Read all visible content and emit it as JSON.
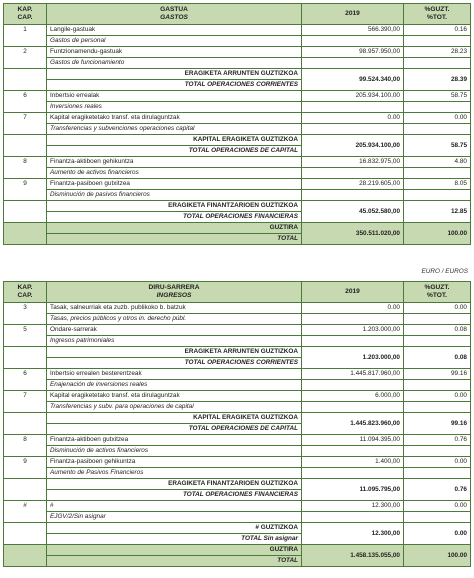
{
  "t1": {
    "header": {
      "cap": "KAP.",
      "cap2": "CAP.",
      "title": "GASTUA",
      "title2": "GASTOS",
      "year": "2019",
      "pct": "%GUZT.",
      "pct2": "%TOT."
    },
    "r1": {
      "cap": "1",
      "eu": "Langile-gastuak",
      "es": "Gastos de personal",
      "amt": "566.390,00",
      "pct": "0.16"
    },
    "r2": {
      "cap": "2",
      "eu": "Funtzionamendu-gastuak",
      "es": "Gastos de funcionamiento",
      "amt": "98.957.950,00",
      "pct": "28.23"
    },
    "s1": {
      "eu": "ERAGIKETA ARRUNTEN GUZTIZKOA",
      "es": "TOTAL OPERACIONES CORRIENTES",
      "amt": "99.524.340,00",
      "pct": "28.39"
    },
    "r6": {
      "cap": "6",
      "eu": "Inbertsio errealak",
      "es": "Inversiones reales",
      "amt": "205.934.100,00",
      "pct": "58.75"
    },
    "r7": {
      "cap": "7",
      "eu": "Kapital eragiketetako transf. eta dirulaguntzak",
      "es": "Transferencias y subvenciones operaciones capital",
      "amt": "0.00",
      "pct": "0.00"
    },
    "s2": {
      "eu": "KAPITAL ERAGIKETA GUZTIZKOA",
      "es": "TOTAL OPERACIONES DE CAPITAL",
      "amt": "205.934.100,00",
      "pct": "58.75"
    },
    "r8": {
      "cap": "8",
      "eu": "Finantza-aktiboen gehikuntza",
      "es": "Aumento de activos financieros",
      "amt": "16.832.975,00",
      "pct": "4.80"
    },
    "r9": {
      "cap": "9",
      "eu": "Finantza-pasiboen gutxitzea",
      "es": "Disminución de pasivos financieros",
      "amt": "28.219.605,00",
      "pct": "8.05"
    },
    "s3": {
      "eu": "ERAGIKETA FINANTZARIOEN GUZTIZKOA",
      "es": "TOTAL OPERACIONES FINANCIERAS",
      "amt": "45.052.580,00",
      "pct": "12.85"
    },
    "tot": {
      "eu": "GUZTIRA",
      "es": "TOTAL",
      "amt": "350.511.020,00",
      "pct": "100.00"
    }
  },
  "unit": "EURO / EUROS",
  "t2": {
    "header": {
      "cap": "KAP.",
      "cap2": "CAP.",
      "title": "DIRU-SARRERA",
      "title2": "INGRESOS",
      "year": "2019",
      "pct": "%GUZT.",
      "pct2": "%TOT."
    },
    "r3": {
      "cap": "3",
      "eu": "Tasak, salneurriak eta zuzb. publikoko b. batzuk",
      "es": "Tasas, precios públicos y otros in. derecho públ.",
      "amt": "0.00",
      "pct": "0.00"
    },
    "r5": {
      "cap": "5",
      "eu": "Ondare-sarrerak",
      "es": "Ingresos patrimoniales",
      "amt": "1.203.000,00",
      "pct": "0.08"
    },
    "s1": {
      "eu": "ERAGIKETA ARRUNTEN GUZTIZKOA",
      "es": "TOTAL OPERACIONES CORRIENTES",
      "amt": "1.203.000,00",
      "pct": "0.08"
    },
    "r6": {
      "cap": "6",
      "eu": "Inbertsio errealen besterentzeak",
      "es": "Enajenación de inversiones reales",
      "amt": "1.445.817.960,00",
      "pct": "99.16"
    },
    "r7": {
      "cap": "7",
      "eu": "Kapital eragiketetako transf. eta dirulaguntzak",
      "es": "Transferencias y subv. para operaciones de capital",
      "amt": "6.000,00",
      "pct": "0.00"
    },
    "s2": {
      "eu": "KAPITAL ERAGIKETA GUZTIZKOA",
      "es": "TOTAL OPERACIONES DE CAPITAL",
      "amt": "1.445.823.960,00",
      "pct": "99.16"
    },
    "r8": {
      "cap": "8",
      "eu": "Finantza-aktiboen gutxitzea",
      "es": "Disminución de activos financieros",
      "amt": "11.094.395,00",
      "pct": "0.76"
    },
    "r9": {
      "cap": "9",
      "eu": "Finantza-pasiboen gehikuntza",
      "es": "Aumento de Pasivos Financieros",
      "amt": "1.400,00",
      "pct": "0.00"
    },
    "s3": {
      "eu": "ERAGIKETA FINANTZARIOEN GUZTIZKOA",
      "es": "TOTAL OPERACIONES FINANCIERAS",
      "amt": "11.095.795,00",
      "pct": "0.76"
    },
    "rh": {
      "cap": "#",
      "eu": "#",
      "es": "EJGV/2/Sin asignar",
      "amt": "12.300,00",
      "pct": "0.00"
    },
    "s4": {
      "eu": "# GUZTIZKOA",
      "es": "TOTAL Sin asignar",
      "amt": "12.300,00",
      "pct": "0.00"
    },
    "tot": {
      "eu": "GUZTIRA",
      "es": "TOTAL",
      "amt": "1.458.135.055,00",
      "pct": "100.00"
    }
  }
}
